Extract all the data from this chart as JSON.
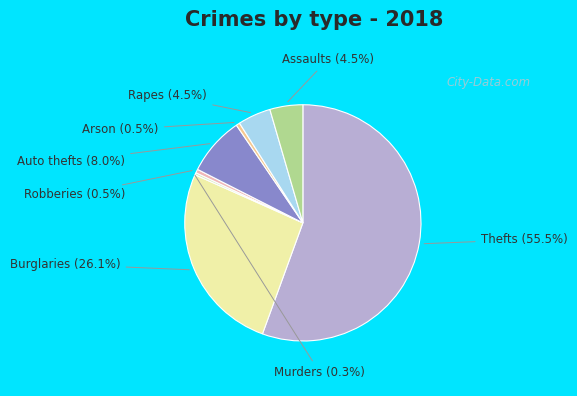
{
  "title": "Crimes by type - 2018",
  "slices": [
    {
      "label": "Thefts (55.5%)",
      "value": 55.5,
      "color": "#b8aed4"
    },
    {
      "label": "Burglaries (26.1%)",
      "value": 26.1,
      "color": "#f0f0a8"
    },
    {
      "label": "Murders (0.3%)",
      "value": 0.3,
      "color": "#d8ecc0"
    },
    {
      "label": "Robberies (0.5%)",
      "value": 0.5,
      "color": "#f0b8b8"
    },
    {
      "label": "Auto thefts (8.0%)",
      "value": 8.0,
      "color": "#8888cc"
    },
    {
      "label": "Arson (0.5%)",
      "value": 0.5,
      "color": "#f5c890"
    },
    {
      "label": "Rapes (4.5%)",
      "value": 4.5,
      "color": "#a8d8f0"
    },
    {
      "label": "Assaults (4.5%)",
      "value": 4.5,
      "color": "#b0d890"
    }
  ],
  "title_fontsize": 15,
  "label_fontsize": 8.5,
  "cyan_border": "#00e5ff",
  "inner_bg_top": "#e8f8f8",
  "inner_bg_bottom": "#d8ecd8",
  "watermark": "City-Data.com"
}
